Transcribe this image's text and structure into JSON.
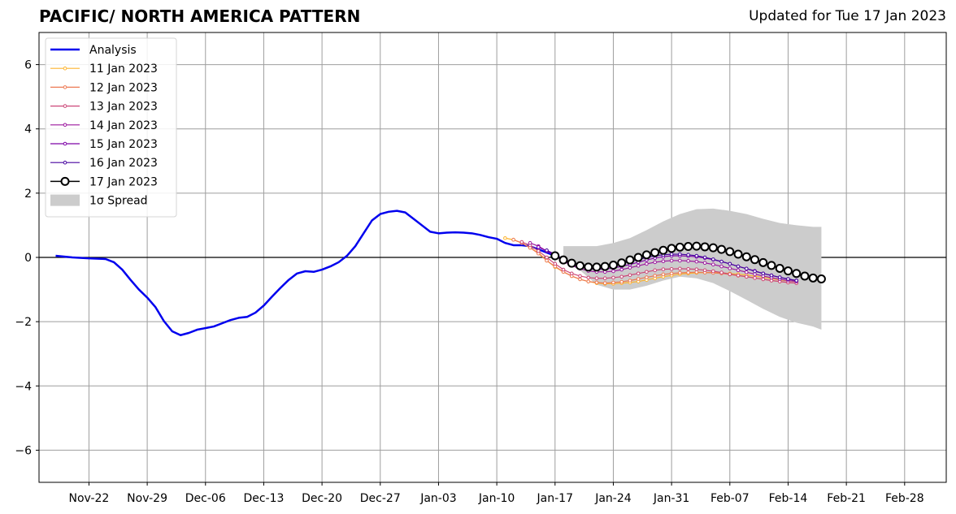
{
  "header": {
    "title": "PACIFIC/ NORTH AMERICA PATTERN",
    "updated": "Updated for Tue 17 Jan 2023"
  },
  "chart_data": {
    "type": "line",
    "x_axis": {
      "min": "2022-11-16",
      "max": "2023-03-05",
      "ticks": [
        "2022-11-22",
        "2022-11-29",
        "2022-12-06",
        "2022-12-13",
        "2022-12-20",
        "2022-12-27",
        "2023-01-03",
        "2023-01-10",
        "2023-01-17",
        "2023-01-24",
        "2023-01-31",
        "2023-02-07",
        "2023-02-14",
        "2023-02-21",
        "2023-02-28"
      ],
      "tick_labels": [
        "Nov-22",
        "Nov-29",
        "Dec-06",
        "Dec-13",
        "Dec-20",
        "Dec-27",
        "Jan-03",
        "Jan-10",
        "Jan-17",
        "Jan-24",
        "Jan-31",
        "Feb-07",
        "Feb-14",
        "Feb-21",
        "Feb-28"
      ]
    },
    "y_axis": {
      "min": -7,
      "max": 7,
      "ticks": [
        6,
        4,
        2,
        0,
        -2,
        -4,
        -6
      ],
      "tick_labels": [
        "6",
        "4",
        "2",
        "0",
        "−2",
        "−4",
        "−6"
      ]
    },
    "grid": true,
    "legend_position": "top-left",
    "analysis": {
      "name": "Analysis",
      "color": "#0000ee",
      "points": [
        [
          "2022-11-18",
          0.05
        ],
        [
          "2022-11-20",
          0.0
        ],
        [
          "2022-11-22",
          -0.03
        ],
        [
          "2022-11-24",
          -0.05
        ],
        [
          "2022-11-25",
          -0.15
        ],
        [
          "2022-11-26",
          -0.38
        ],
        [
          "2022-11-27",
          -0.7
        ],
        [
          "2022-11-28",
          -1.0
        ],
        [
          "2022-11-29",
          -1.25
        ],
        [
          "2022-11-30",
          -1.55
        ],
        [
          "2022-12-01",
          -1.98
        ],
        [
          "2022-12-02",
          -2.3
        ],
        [
          "2022-12-03",
          -2.42
        ],
        [
          "2022-12-04",
          -2.35
        ],
        [
          "2022-12-05",
          -2.25
        ],
        [
          "2022-12-06",
          -2.2
        ],
        [
          "2022-12-07",
          -2.15
        ],
        [
          "2022-12-08",
          -2.05
        ],
        [
          "2022-12-09",
          -1.95
        ],
        [
          "2022-12-10",
          -1.88
        ],
        [
          "2022-12-11",
          -1.85
        ],
        [
          "2022-12-12",
          -1.72
        ],
        [
          "2022-12-13",
          -1.5
        ],
        [
          "2022-12-14",
          -1.22
        ],
        [
          "2022-12-15",
          -0.95
        ],
        [
          "2022-12-16",
          -0.7
        ],
        [
          "2022-12-17",
          -0.5
        ],
        [
          "2022-12-18",
          -0.43
        ],
        [
          "2022-12-19",
          -0.45
        ],
        [
          "2022-12-20",
          -0.38
        ],
        [
          "2022-12-21",
          -0.28
        ],
        [
          "2022-12-22",
          -0.15
        ],
        [
          "2022-12-23",
          0.05
        ],
        [
          "2022-12-24",
          0.35
        ],
        [
          "2022-12-25",
          0.75
        ],
        [
          "2022-12-26",
          1.15
        ],
        [
          "2022-12-27",
          1.35
        ],
        [
          "2022-12-28",
          1.42
        ],
        [
          "2022-12-29",
          1.45
        ],
        [
          "2022-12-30",
          1.4
        ],
        [
          "2022-12-31",
          1.2
        ],
        [
          "2023-01-01",
          1.0
        ],
        [
          "2023-01-02",
          0.8
        ],
        [
          "2023-01-03",
          0.75
        ],
        [
          "2023-01-04",
          0.77
        ],
        [
          "2023-01-05",
          0.78
        ],
        [
          "2023-01-06",
          0.77
        ],
        [
          "2023-01-07",
          0.75
        ],
        [
          "2023-01-08",
          0.7
        ],
        [
          "2023-01-09",
          0.63
        ],
        [
          "2023-01-10",
          0.58
        ],
        [
          "2023-01-11",
          0.45
        ],
        [
          "2023-01-12",
          0.38
        ],
        [
          "2023-01-13",
          0.38
        ],
        [
          "2023-01-14",
          0.35
        ],
        [
          "2023-01-15",
          0.25
        ],
        [
          "2023-01-16",
          0.15
        ],
        [
          "2023-01-17",
          0.05
        ]
      ]
    },
    "forecasts": [
      {
        "name": "11 Jan 2023",
        "color": "#fdb42f",
        "start": "2023-01-11",
        "values": [
          0.6,
          0.55,
          0.45,
          0.3,
          0.15,
          -0.1,
          -0.3,
          -0.45,
          -0.58,
          -0.68,
          -0.75,
          -0.8,
          -0.82,
          -0.82,
          -0.8,
          -0.78,
          -0.75,
          -0.7,
          -0.65,
          -0.6,
          -0.56,
          -0.52,
          -0.5,
          -0.48,
          -0.47,
          -0.47,
          -0.48,
          -0.5,
          -0.52,
          -0.55,
          -0.58,
          -0.62,
          -0.66,
          -0.7,
          -0.73,
          -0.75
        ]
      },
      {
        "name": "12 Jan 2023",
        "color": "#ed7953",
        "start": "2023-01-12",
        "values": [
          0.55,
          0.45,
          0.3,
          0.12,
          -0.1,
          -0.28,
          -0.45,
          -0.58,
          -0.68,
          -0.75,
          -0.78,
          -0.8,
          -0.78,
          -0.76,
          -0.72,
          -0.67,
          -0.62,
          -0.57,
          -0.53,
          -0.5,
          -0.48,
          -0.47,
          -0.46,
          -0.47,
          -0.48,
          -0.5,
          -0.53,
          -0.57,
          -0.6,
          -0.64,
          -0.68,
          -0.72,
          -0.75,
          -0.78,
          -0.8
        ]
      },
      {
        "name": "13 Jan 2023",
        "color": "#cc4778",
        "start": "2023-01-13",
        "values": [
          0.48,
          0.38,
          0.2,
          0.0,
          -0.2,
          -0.38,
          -0.5,
          -0.58,
          -0.63,
          -0.65,
          -0.65,
          -0.63,
          -0.6,
          -0.55,
          -0.5,
          -0.45,
          -0.4,
          -0.37,
          -0.36,
          -0.35,
          -0.36,
          -0.37,
          -0.4,
          -0.43,
          -0.47,
          -0.52,
          -0.56,
          -0.6,
          -0.64,
          -0.68,
          -0.72,
          -0.75,
          -0.78,
          -0.8
        ]
      },
      {
        "name": "14 Jan 2023",
        "color": "#9c179e",
        "start": "2023-01-14",
        "values": [
          0.45,
          0.35,
          0.2,
          0.05,
          -0.12,
          -0.25,
          -0.35,
          -0.42,
          -0.45,
          -0.45,
          -0.43,
          -0.38,
          -0.32,
          -0.26,
          -0.2,
          -0.15,
          -0.12,
          -0.1,
          -0.1,
          -0.11,
          -0.13,
          -0.17,
          -0.22,
          -0.28,
          -0.34,
          -0.4,
          -0.46,
          -0.52,
          -0.58,
          -0.63,
          -0.68,
          -0.72,
          -0.75
        ]
      },
      {
        "name": "15 Jan 2023",
        "color": "#7e03a8",
        "start": "2023-01-15",
        "values": [
          0.32,
          0.2,
          0.05,
          -0.1,
          -0.22,
          -0.3,
          -0.35,
          -0.37,
          -0.36,
          -0.33,
          -0.28,
          -0.22,
          -0.15,
          -0.08,
          -0.02,
          0.02,
          0.05,
          0.05,
          0.04,
          0.02,
          -0.02,
          -0.07,
          -0.13,
          -0.2,
          -0.28,
          -0.35,
          -0.42,
          -0.5,
          -0.56,
          -0.62,
          -0.68,
          -0.72
        ]
      },
      {
        "name": "16 Jan 2023",
        "color": "#46039f",
        "start": "2023-01-16",
        "values": [
          0.22,
          0.1,
          -0.05,
          -0.15,
          -0.22,
          -0.26,
          -0.28,
          -0.27,
          -0.24,
          -0.19,
          -0.13,
          -0.07,
          0.0,
          0.05,
          0.08,
          0.1,
          0.1,
          0.08,
          0.05,
          0.0,
          -0.06,
          -0.13,
          -0.2,
          -0.28,
          -0.35,
          -0.43,
          -0.5,
          -0.56,
          -0.62,
          -0.67,
          -0.72
        ]
      },
      {
        "name": "17 Jan 2023",
        "color": "#000000",
        "start": "2023-01-17",
        "values": [
          0.05,
          -0.08,
          -0.18,
          -0.26,
          -0.3,
          -0.3,
          -0.28,
          -0.24,
          -0.17,
          -0.08,
          0.0,
          0.08,
          0.15,
          0.22,
          0.28,
          0.32,
          0.34,
          0.35,
          0.33,
          0.3,
          0.25,
          0.18,
          0.1,
          0.02,
          -0.07,
          -0.16,
          -0.25,
          -0.34,
          -0.42,
          -0.5,
          -0.58,
          -0.64,
          -0.67
        ]
      }
    ],
    "spread": {
      "name": "1σ Spread",
      "color": "#cccccc",
      "dates": [
        "2023-01-18",
        "2023-01-20",
        "2023-01-22",
        "2023-01-24",
        "2023-01-26",
        "2023-01-28",
        "2023-01-30",
        "2023-02-01",
        "2023-02-03",
        "2023-02-05",
        "2023-02-07",
        "2023-02-09",
        "2023-02-11",
        "2023-02-13",
        "2023-02-15",
        "2023-02-17",
        "2023-02-18"
      ],
      "upper": [
        0.35,
        0.35,
        0.35,
        0.45,
        0.6,
        0.85,
        1.12,
        1.35,
        1.5,
        1.52,
        1.45,
        1.35,
        1.2,
        1.07,
        1.0,
        0.95,
        0.95
      ],
      "lower": [
        -0.1,
        -0.4,
        -0.85,
        -1.0,
        -1.0,
        -0.88,
        -0.72,
        -0.6,
        -0.65,
        -0.8,
        -1.05,
        -1.32,
        -1.6,
        -1.85,
        -2.03,
        -2.15,
        -2.25
      ]
    }
  }
}
